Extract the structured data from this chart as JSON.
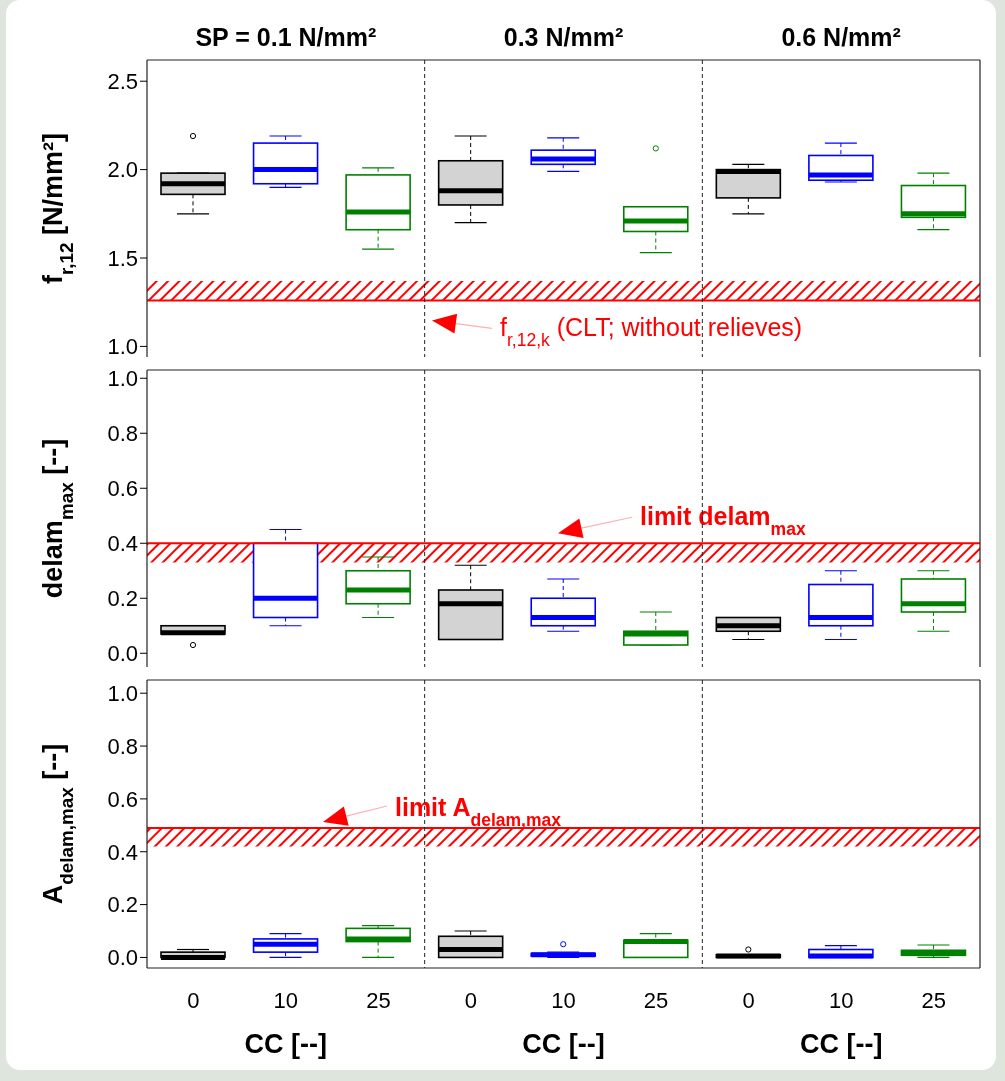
{
  "chart_data": [
    {
      "type": "box",
      "ylabel": "f$_{r,12}$ [N/mm²]",
      "annotations": [
        "SP = 0.1 N/mm²",
        "0.3 N/mm²",
        "0.6 N/mm²"
      ],
      "tick_labels": "y",
      "categories": [
        null,
        null,
        null,
        null,
        null,
        null,
        null,
        null,
        null
      ],
      "colors": [
        "#000000",
        "#0000ff",
        "#008000",
        "#000000",
        "#0000ff",
        "#008000",
        "#000000",
        "#0000ff",
        "#008000"
      ],
      "boxes": [
        {
          "low": 1.75,
          "q1": 1.86,
          "median": 1.92,
          "q3": 1.98,
          "high": 1.98,
          "outliers": [
            2.19
          ]
        },
        {
          "low": 1.9,
          "q1": 1.92,
          "median": 2.0,
          "q3": 2.15,
          "high": 2.19
        },
        {
          "low": 1.55,
          "q1": 1.66,
          "median": 1.76,
          "q3": 1.97,
          "high": 2.01
        },
        {
          "low": 1.7,
          "q1": 1.8,
          "median": 1.88,
          "q3": 2.05,
          "high": 2.19
        },
        {
          "low": 1.99,
          "q1": 2.03,
          "median": 2.06,
          "q3": 2.11,
          "high": 2.18
        },
        {
          "low": 1.53,
          "q1": 1.65,
          "median": 1.71,
          "q3": 1.79,
          "high": 1.79,
          "outliers": [
            2.12
          ]
        },
        {
          "low": 1.75,
          "q1": 1.84,
          "median": 1.99,
          "q3": 2.0,
          "high": 2.03
        },
        {
          "low": 1.93,
          "q1": 1.94,
          "median": 1.97,
          "q3": 2.08,
          "high": 2.15
        },
        {
          "low": 1.66,
          "q1": 1.73,
          "median": 1.75,
          "q3": 1.91,
          "high": 1.98
        }
      ],
      "ylim": [
        0.94,
        2.62
      ],
      "yticks": [
        {
          "value": 1,
          "label": "1.0"
        },
        {
          "value": 1.5,
          "label": "1.5"
        },
        {
          "value": 2,
          "label": "2.0"
        },
        {
          "value": 2.5,
          "label": "2.5"
        }
      ],
      "ref_lines": [
        {
          "axis": "y",
          "value": 1.26,
          "color": "#ff0000",
          "label": "f$_{r,12,k}$ (CLT; without relieves)"
        }
      ],
      "bands": [
        {
          "axis": "y",
          "from": 1.26,
          "to": 1.37,
          "color": "#ff0000"
        }
      ]
    },
    {
      "type": "box",
      "ylabel": "delam$_{max}$ [--]",
      "tick_labels": "y",
      "categories": [
        null,
        null,
        null,
        null,
        null,
        null,
        null,
        null,
        null
      ],
      "colors": [
        "#000000",
        "#0000ff",
        "#008000",
        "#000000",
        "#0000ff",
        "#008000",
        "#000000",
        "#0000ff",
        "#008000"
      ],
      "boxes": [
        {
          "low": 0.07,
          "q1": 0.07,
          "median": 0.075,
          "q3": 0.1,
          "high": 0.1,
          "outliers": [
            0.03
          ]
        },
        {
          "low": 0.1,
          "q1": 0.13,
          "median": 0.2,
          "q3": 0.4,
          "high": 0.45
        },
        {
          "low": 0.13,
          "q1": 0.18,
          "median": 0.23,
          "q3": 0.3,
          "high": 0.35
        },
        {
          "low": 0.05,
          "q1": 0.05,
          "median": 0.18,
          "q3": 0.23,
          "high": 0.32
        },
        {
          "low": 0.08,
          "q1": 0.1,
          "median": 0.13,
          "q3": 0.2,
          "high": 0.27
        },
        {
          "low": 0.03,
          "q1": 0.03,
          "median": 0.07,
          "q3": 0.08,
          "high": 0.15
        },
        {
          "low": 0.05,
          "q1": 0.08,
          "median": 0.1,
          "q3": 0.13,
          "high": 0.13
        },
        {
          "low": 0.05,
          "q1": 0.1,
          "median": 0.13,
          "q3": 0.25,
          "high": 0.3
        },
        {
          "low": 0.08,
          "q1": 0.15,
          "median": 0.18,
          "q3": 0.27,
          "high": 0.3
        }
      ],
      "ylim": [
        -0.05,
        1.03
      ],
      "yticks": [
        {
          "value": 0,
          "label": "0.0"
        },
        {
          "value": 0.2,
          "label": "0.2"
        },
        {
          "value": 0.4,
          "label": "0.4"
        },
        {
          "value": 0.6,
          "label": "0.6"
        },
        {
          "value": 0.8,
          "label": "0.8"
        },
        {
          "value": 1,
          "label": "1.0"
        }
      ],
      "ref_lines": [
        {
          "axis": "y",
          "value": 0.4,
          "color": "#ff0000",
          "label": "limit delam$_{max}$"
        }
      ],
      "bands": [
        {
          "axis": "y",
          "from": 0.33,
          "to": 0.4,
          "color": "#ff0000"
        }
      ]
    },
    {
      "type": "box",
      "ylabel": "A$_{delam,max}$ [--]",
      "xlabel": "CC [--]",
      "categories": [
        "0",
        "10",
        "25",
        "0",
        "10",
        "25",
        "0",
        "10",
        "25"
      ],
      "colors": [
        "#000000",
        "#0000ff",
        "#008000",
        "#000000",
        "#0000ff",
        "#008000",
        "#000000",
        "#0000ff",
        "#008000"
      ],
      "boxes": [
        {
          "low": 0,
          "q1": 0,
          "median": 0,
          "q3": 0.02,
          "high": 0.03
        },
        {
          "low": 0,
          "q1": 0.02,
          "median": 0.05,
          "q3": 0.07,
          "high": 0.09
        },
        {
          "low": 0,
          "q1": 0.06,
          "median": 0.07,
          "q3": 0.11,
          "high": 0.12
        },
        {
          "low": 0,
          "q1": 0,
          "median": 0.03,
          "q3": 0.08,
          "high": 0.1
        },
        {
          "low": 0,
          "q1": 0.005,
          "median": 0.01,
          "q3": 0.015,
          "high": 0.02,
          "outliers": [
            0.05
          ]
        },
        {
          "low": 0,
          "q1": 0,
          "median": 0.06,
          "q3": 0.065,
          "high": 0.09
        },
        {
          "low": 0,
          "q1": 0,
          "median": 0.005,
          "q3": 0.01,
          "high": 0.01,
          "outliers": [
            0.03
          ]
        },
        {
          "low": 0,
          "q1": 0,
          "median": 0.005,
          "q3": 0.03,
          "high": 0.045
        },
        {
          "low": 0,
          "q1": 0.008,
          "median": 0.016,
          "q3": 0.027,
          "high": 0.047
        }
      ],
      "ylim": [
        -0.04,
        1.05
      ],
      "yticks": [
        {
          "value": 0,
          "label": "0.0"
        },
        {
          "value": 0.2,
          "label": "0.2"
        },
        {
          "value": 0.4,
          "label": "0.4"
        },
        {
          "value": 0.6,
          "label": "0.6"
        },
        {
          "value": 0.8,
          "label": "0.8"
        },
        {
          "value": 1,
          "label": "1.0"
        }
      ],
      "ref_lines": [
        {
          "axis": "y",
          "value": 0.49,
          "color": "#ff0000",
          "label": "limit A$_{delam,max}$"
        }
      ],
      "bands": [
        {
          "axis": "y",
          "from": 0.42,
          "to": 0.49,
          "color": "#ff0000"
        }
      ]
    }
  ]
}
